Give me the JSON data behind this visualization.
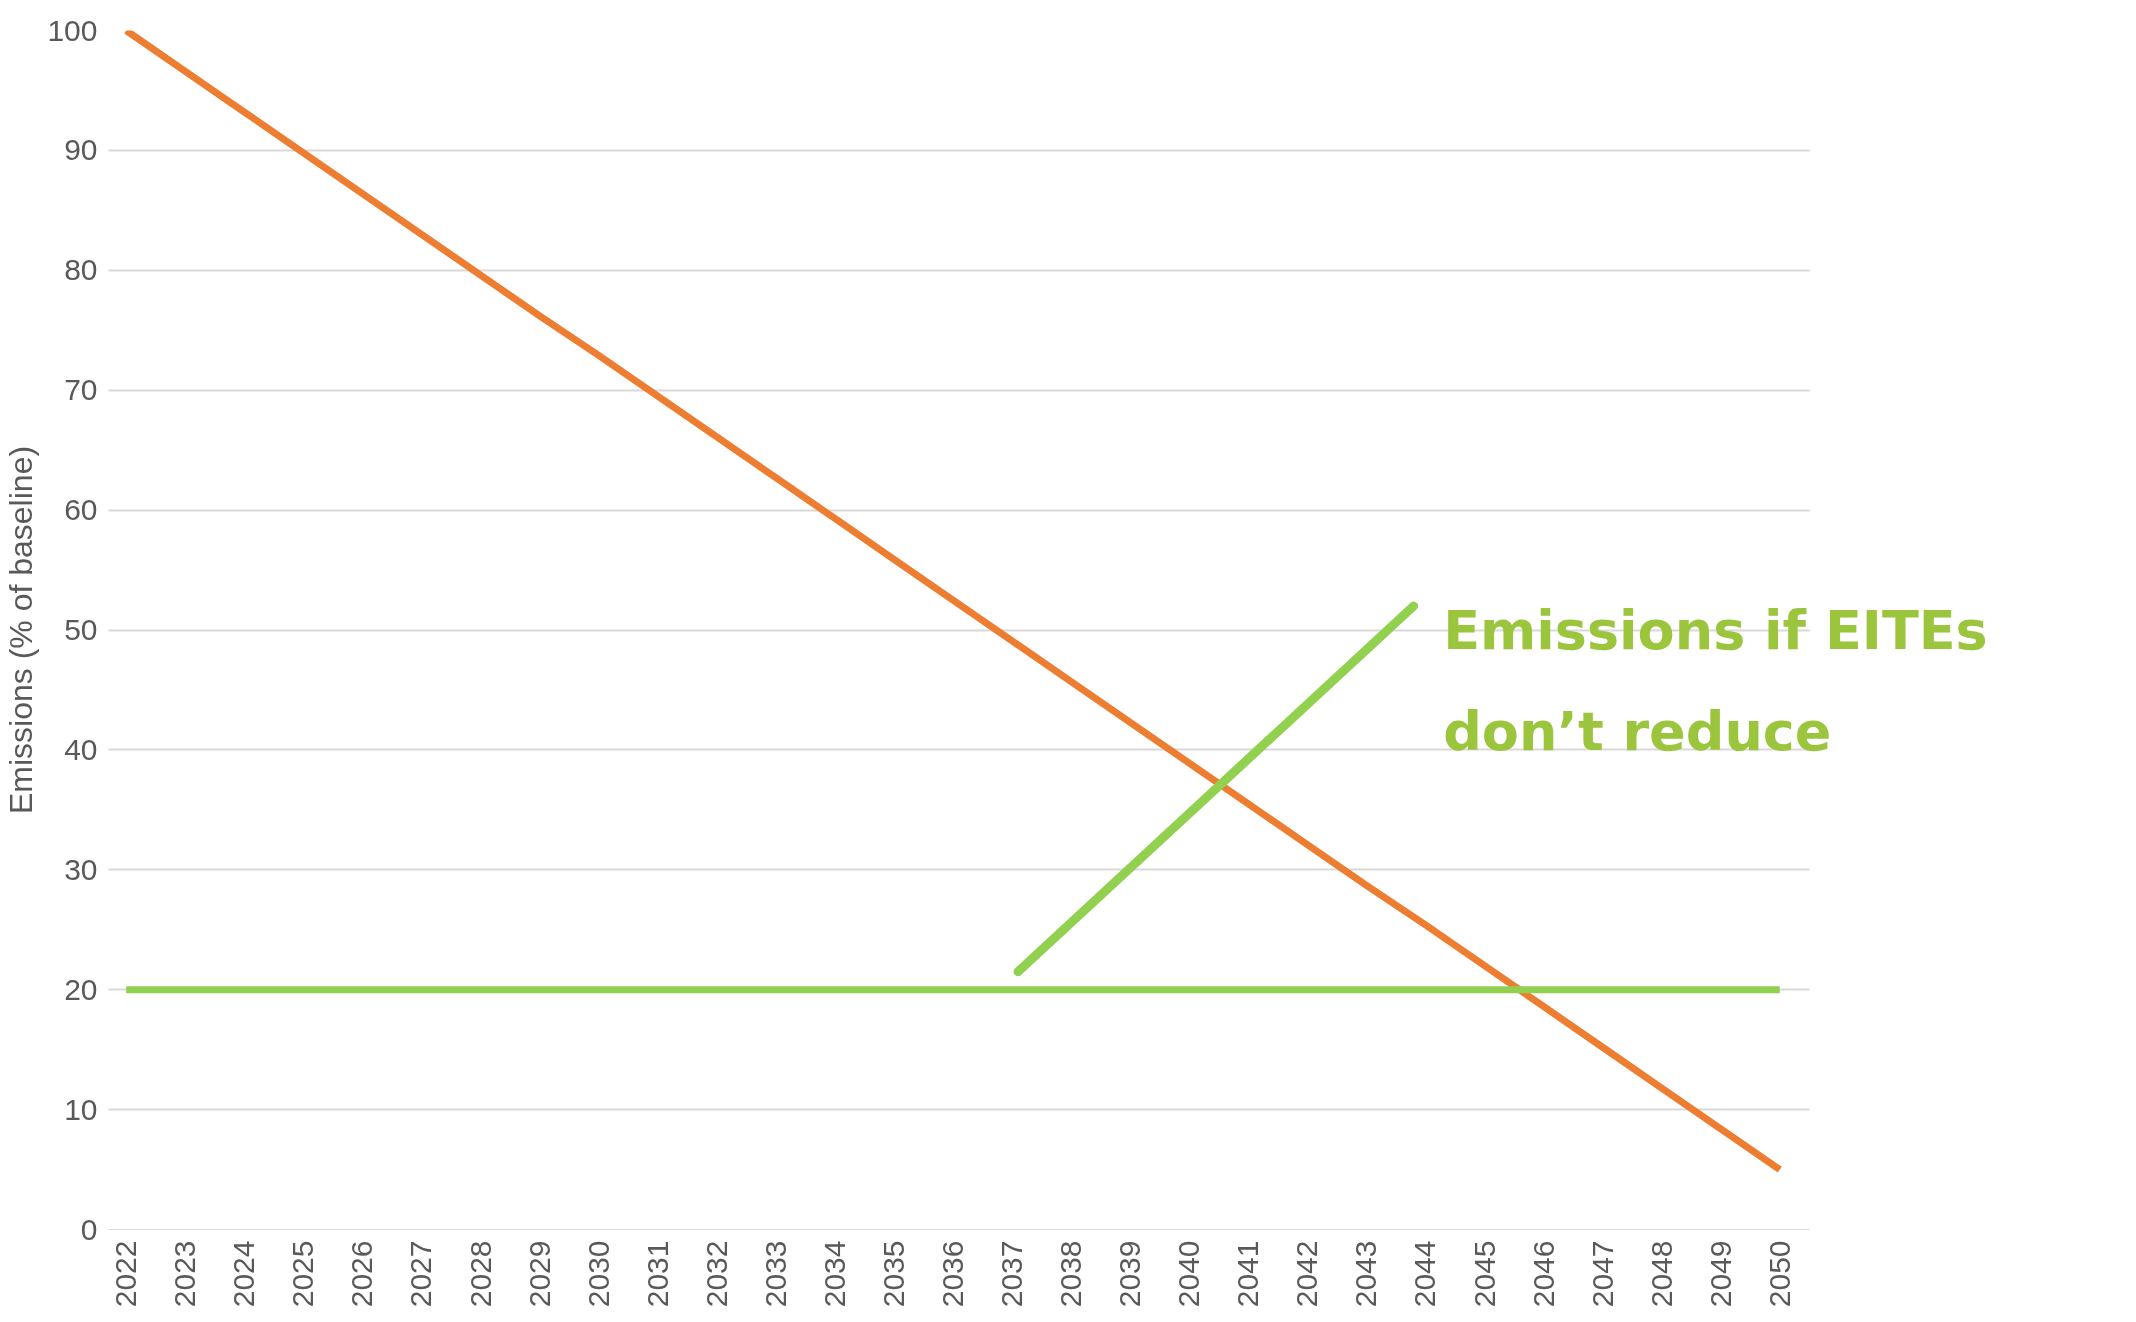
{
  "chart_data": {
    "type": "line",
    "ylabel": "Emissions (% of baseline)",
    "categories": [
      "2022",
      "2023",
      "2024",
      "2025",
      "2026",
      "2027",
      "2028",
      "2029",
      "2030",
      "2031",
      "2032",
      "2033",
      "2034",
      "2035",
      "2036",
      "2037",
      "2038",
      "2039",
      "2040",
      "2041",
      "2042",
      "2043",
      "2044",
      "2045",
      "2046",
      "2047",
      "2048",
      "2049",
      "2050"
    ],
    "series": [
      {
        "color": "#ed7d31",
        "values": [
          100,
          96.6,
          93.2,
          89.8,
          86.4,
          83.0,
          79.6,
          76.2,
          72.9,
          69.5,
          66.1,
          62.7,
          59.3,
          55.9,
          52.5,
          49.1,
          45.7,
          42.3,
          38.9,
          35.5,
          32.1,
          28.7,
          25.4,
          22.0,
          18.6,
          15.2,
          11.8,
          8.4,
          5.0
        ]
      },
      {
        "color": "#92d050",
        "values": [
          20,
          20,
          20,
          20,
          20,
          20,
          20,
          20,
          20,
          20,
          20,
          20,
          20,
          20,
          20,
          20,
          20,
          20,
          20,
          20,
          20,
          20,
          20,
          20,
          20,
          20,
          20,
          20,
          20
        ]
      }
    ],
    "ylim": [
      0,
      100
    ],
    "yticks": [
      0,
      10,
      20,
      30,
      40,
      50,
      60,
      70,
      80,
      90,
      100
    ],
    "grid": "y",
    "line_style": "solid",
    "annotations": [
      "Emissions if EITEs don’t reduce"
    ]
  }
}
